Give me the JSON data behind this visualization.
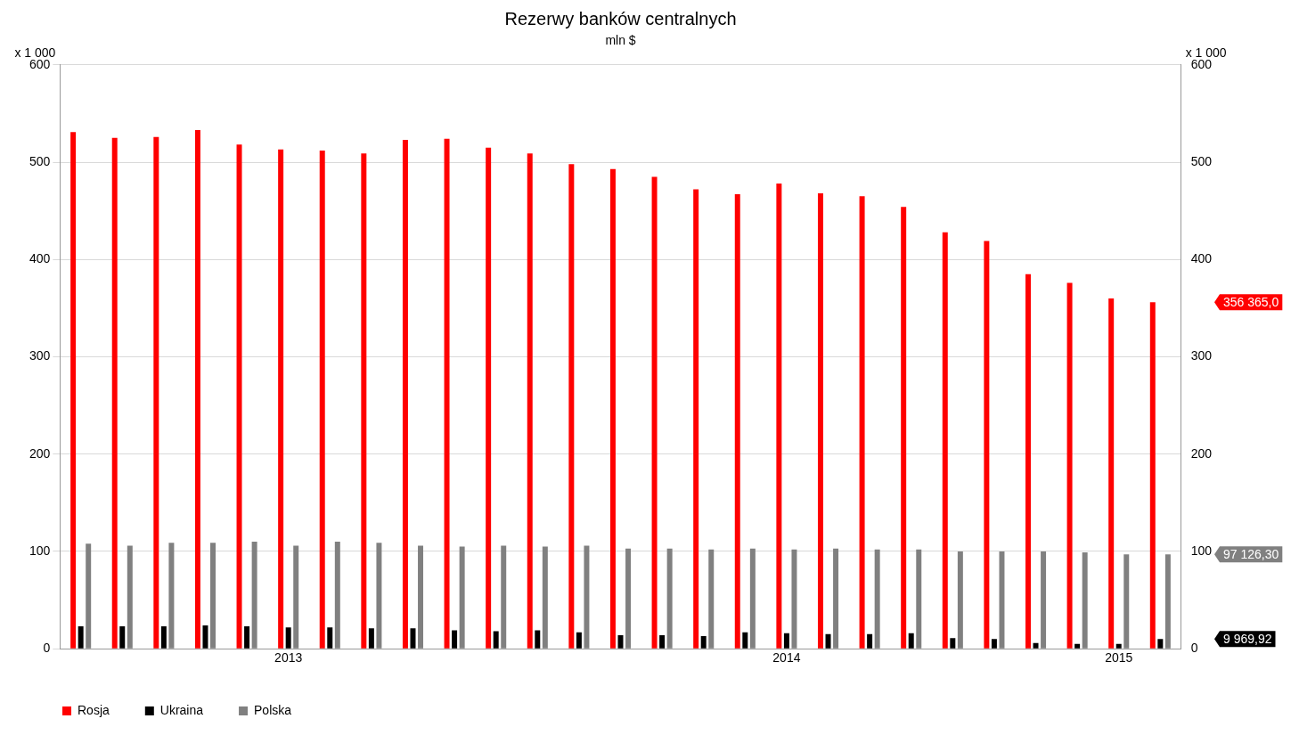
{
  "chart_data": {
    "type": "bar",
    "title": "Rezerwy banków centralnych",
    "subtitle": "mln $",
    "ylabel": "x 1 000",
    "y2label": "x 1 000",
    "categories": [
      null,
      null,
      null,
      null,
      null,
      "2013",
      null,
      null,
      null,
      null,
      null,
      null,
      null,
      null,
      null,
      null,
      null,
      "2014",
      null,
      null,
      null,
      null,
      null,
      null,
      null,
      "2015",
      null
    ],
    "series": [
      {
        "name": "Rosja",
        "color": "#ff0000",
        "values": [
          531,
          525,
          526,
          533,
          518,
          513,
          512,
          509,
          523,
          524,
          515,
          509,
          498,
          493,
          485,
          472,
          467,
          478,
          468,
          465,
          454,
          428,
          419,
          385,
          376,
          360,
          356
        ]
      },
      {
        "name": "Ukraina",
        "color": "#000000",
        "values": [
          23,
          23,
          23,
          24,
          23,
          22,
          22,
          21,
          21,
          19,
          18,
          19,
          17,
          14,
          14,
          13,
          17,
          16,
          15,
          15,
          16,
          11,
          10,
          6,
          5,
          5,
          10
        ]
      },
      {
        "name": "Polska",
        "color": "#808080",
        "values": [
          108,
          106,
          109,
          109,
          110,
          106,
          110,
          109,
          106,
          105,
          106,
          105,
          106,
          103,
          103,
          102,
          103,
          102,
          103,
          102,
          102,
          100,
          100,
          100,
          99,
          97,
          97
        ]
      }
    ],
    "annotations": [
      "356 365,0",
      "9 969,92",
      "97 126,30"
    ],
    "ylim": [
      0,
      600
    ],
    "yticks": [
      0,
      100,
      200,
      300,
      400,
      500,
      600
    ],
    "y2lim": [
      0,
      600
    ],
    "y2ticks": [
      0,
      100,
      200,
      300,
      400,
      500,
      600
    ],
    "grid": "y",
    "legend": "bottom"
  }
}
